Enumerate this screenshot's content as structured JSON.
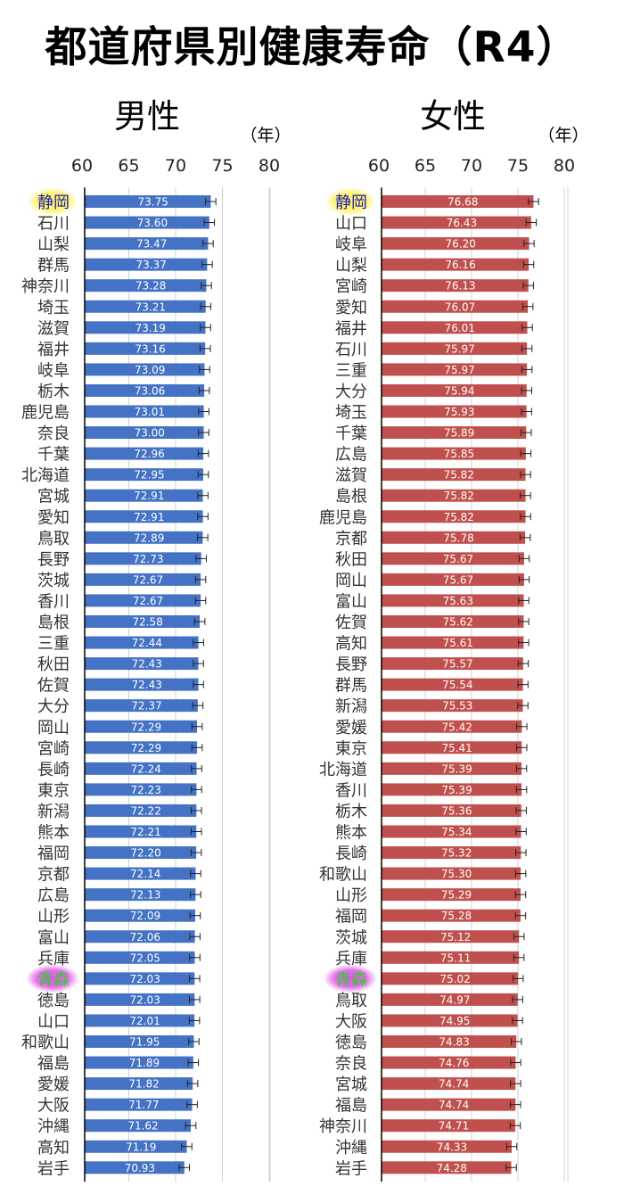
{
  "title": "都道府県別健康寿命（R4）",
  "colors": {
    "male_bar": "#4472c4",
    "female_bar": "#c0504d",
    "highlight_shizuoka": "#fff36a",
    "highlight_aomori": "#e055e6"
  },
  "highlights": {
    "shizuoka": "静岡",
    "aomori": "青森"
  },
  "chart_data": [
    {
      "type": "bar",
      "orientation": "horizontal",
      "title": "男性",
      "unit": "（年）",
      "xlim": [
        60,
        80
      ],
      "ticks": [
        60,
        65,
        70,
        75,
        80
      ],
      "grid": true,
      "error_bars": true,
      "categories": [
        "静岡",
        "石川",
        "山梨",
        "群馬",
        "神奈川",
        "埼玉",
        "滋賀",
        "福井",
        "岐阜",
        "栃木",
        "鹿児島",
        "奈良",
        "千葉",
        "北海道",
        "宮城",
        "愛知",
        "鳥取",
        "長野",
        "茨城",
        "香川",
        "島根",
        "三重",
        "秋田",
        "佐賀",
        "大分",
        "岡山",
        "宮崎",
        "長崎",
        "東京",
        "新潟",
        "熊本",
        "福岡",
        "京都",
        "広島",
        "山形",
        "富山",
        "兵庫",
        "青森",
        "徳島",
        "山口",
        "和歌山",
        "福島",
        "愛媛",
        "大阪",
        "沖縄",
        "高知",
        "岩手"
      ],
      "values": [
        73.75,
        73.6,
        73.47,
        73.37,
        73.28,
        73.21,
        73.19,
        73.16,
        73.09,
        73.06,
        73.01,
        73.0,
        72.96,
        72.95,
        72.91,
        72.91,
        72.89,
        72.73,
        72.67,
        72.67,
        72.58,
        72.44,
        72.43,
        72.43,
        72.37,
        72.29,
        72.29,
        72.24,
        72.23,
        72.22,
        72.21,
        72.2,
        72.14,
        72.13,
        72.09,
        72.06,
        72.05,
        72.03,
        72.03,
        72.01,
        71.95,
        71.89,
        71.82,
        71.77,
        71.62,
        71.19,
        70.93
      ],
      "labels": [
        "73.75",
        "73.60",
        "73.47",
        "73.37",
        "73.28",
        "73.21",
        "73.19",
        "73.16",
        "73.09",
        "73.06",
        "73.01",
        "73.00",
        "72.96",
        "72.95",
        "72.91",
        "72.91",
        "72.89",
        "72.73",
        "72.67",
        "72.67",
        "72.58",
        "72.44",
        "72.43",
        "72.43",
        "72.37",
        "72.29",
        "72.29",
        "72.24",
        "72.23",
        "72.22",
        "72.21",
        "72.20",
        "72.14",
        "72.13",
        "72.09",
        "72.06",
        "72.05",
        "72.03",
        "72.03",
        "72.01",
        "71.95",
        "71.89",
        "71.82",
        "71.77",
        "71.62",
        "71.19",
        "70.93"
      ]
    },
    {
      "type": "bar",
      "orientation": "horizontal",
      "title": "女性",
      "unit": "（年）",
      "xlim": [
        60,
        80
      ],
      "ticks": [
        60,
        65,
        70,
        75,
        80
      ],
      "grid": true,
      "error_bars": true,
      "categories": [
        "静岡",
        "山口",
        "岐阜",
        "山梨",
        "宮崎",
        "愛知",
        "福井",
        "石川",
        "三重",
        "大分",
        "埼玉",
        "千葉",
        "広島",
        "滋賀",
        "島根",
        "鹿児島",
        "京都",
        "秋田",
        "岡山",
        "富山",
        "佐賀",
        "高知",
        "長野",
        "群馬",
        "新潟",
        "愛媛",
        "東京",
        "北海道",
        "香川",
        "栃木",
        "熊本",
        "長崎",
        "和歌山",
        "山形",
        "福岡",
        "茨城",
        "兵庫",
        "青森",
        "鳥取",
        "大阪",
        "徳島",
        "奈良",
        "宮城",
        "福島",
        "神奈川",
        "沖縄",
        "岩手"
      ],
      "values": [
        76.68,
        76.43,
        76.2,
        76.16,
        76.13,
        76.07,
        76.01,
        75.97,
        75.97,
        75.94,
        75.93,
        75.89,
        75.85,
        75.82,
        75.82,
        75.82,
        75.78,
        75.67,
        75.67,
        75.63,
        75.62,
        75.61,
        75.57,
        75.54,
        75.53,
        75.42,
        75.41,
        75.39,
        75.39,
        75.36,
        75.34,
        75.32,
        75.3,
        75.29,
        75.28,
        75.12,
        75.11,
        75.02,
        74.97,
        74.95,
        74.83,
        74.76,
        74.74,
        74.74,
        74.71,
        74.33,
        74.28
      ],
      "labels": [
        "76.68",
        "76.43",
        "76.20",
        "76.16",
        "76.13",
        "76.07",
        "76.01",
        "75.97",
        "75.97",
        "75.94",
        "75.93",
        "75.89",
        "75.85",
        "75.82",
        "75.82",
        "75.82",
        "75.78",
        "75.67",
        "75.67",
        "75.63",
        "75.62",
        "75.61",
        "75.57",
        "75.54",
        "75.53",
        "75.42",
        "75.41",
        "75.39",
        "75.39",
        "75.36",
        "75.34",
        "75.32",
        "75.30",
        "75.29",
        "75.28",
        "75.12",
        "75.11",
        "75.02",
        "74.97",
        "74.95",
        "74.83",
        "74.76",
        "74.74",
        "74.74",
        "74.71",
        "74.33",
        "74.28"
      ]
    }
  ]
}
